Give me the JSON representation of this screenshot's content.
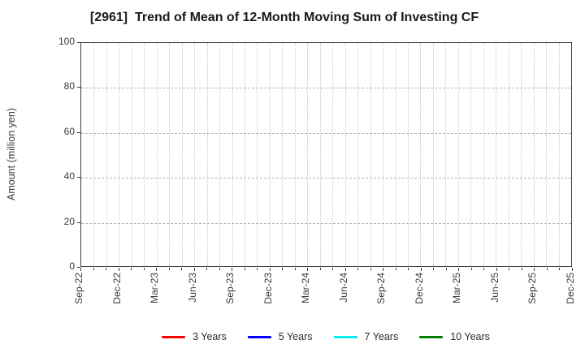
{
  "page": {
    "background": "#ffffff"
  },
  "chart_data": {
    "type": "line",
    "title": "[2961]  Trend of Mean of 12-Month Moving Sum of Investing CF",
    "ylabel": "Amount (million yen)",
    "xlabel": "",
    "ylim": [
      0,
      100
    ],
    "yticks": [
      0,
      20,
      40,
      60,
      80,
      100
    ],
    "x_tick_labels": [
      "Sep-22",
      "Dec-22",
      "Mar-23",
      "Jun-23",
      "Sep-23",
      "Dec-23",
      "Mar-24",
      "Jun-24",
      "Sep-24",
      "Dec-24",
      "Mar-25",
      "Jun-25",
      "Sep-25",
      "Dec-25"
    ],
    "x_minor_divisions": 39,
    "grid": {
      "vertical_style": "dotted",
      "horizontal_style": "dashed",
      "grid_color": "#c0c0c0",
      "grid_on": true
    },
    "axes_color": "#3c3c3c",
    "legend_position": "bottom",
    "series": [
      {
        "name": "3 Years",
        "color": "#ff0000",
        "values": []
      },
      {
        "name": "5 Years",
        "color": "#0000ff",
        "values": []
      },
      {
        "name": "7 Years",
        "color": "#00eeee",
        "values": []
      },
      {
        "name": "10 Years",
        "color": "#008000",
        "values": []
      }
    ],
    "no_data_plotted": true
  }
}
